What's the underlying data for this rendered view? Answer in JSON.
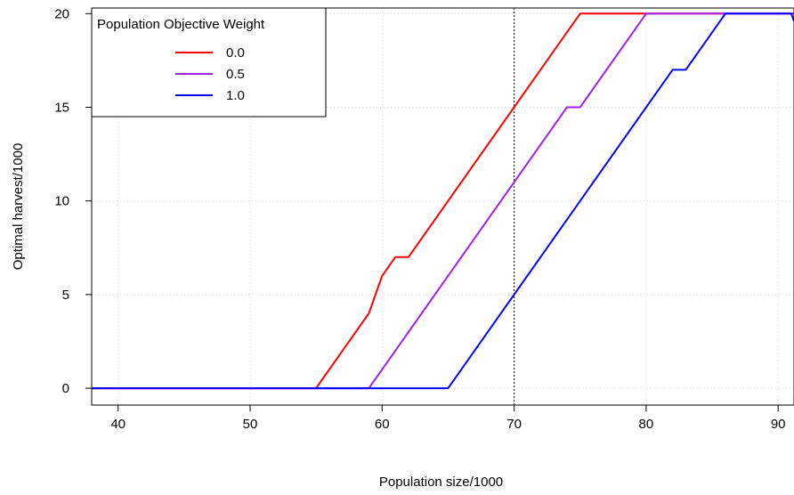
{
  "chart_data": {
    "type": "line",
    "xlabel": "Population size/1000",
    "ylabel": "Optimal harvest/1000",
    "xlim": [
      38,
      91.2
    ],
    "ylim": [
      -0.9,
      20.3
    ],
    "x_ticks": [
      40,
      50,
      60,
      70,
      80,
      90
    ],
    "y_ticks": [
      0,
      5,
      10,
      15,
      20
    ],
    "grid": true,
    "reference_vline": 70,
    "legend": {
      "title": "Population Objective Weight",
      "placement": "top-left"
    },
    "series": [
      {
        "name": "0.0",
        "color": "#ff0000",
        "points": [
          [
            38,
            0
          ],
          [
            55,
            0
          ],
          [
            59,
            4
          ],
          [
            60,
            6
          ],
          [
            61,
            7
          ],
          [
            62,
            7
          ],
          [
            75,
            20
          ],
          [
            91.2,
            20
          ]
        ]
      },
      {
        "name": "0.5",
        "color": "#a020f0",
        "points": [
          [
            38,
            0
          ],
          [
            59,
            0
          ],
          [
            74,
            15
          ],
          [
            75,
            15
          ],
          [
            80,
            20
          ],
          [
            91.2,
            20
          ]
        ]
      },
      {
        "name": "1.0",
        "color": "#0000ff",
        "points": [
          [
            38,
            0
          ],
          [
            65,
            0
          ],
          [
            82,
            17
          ],
          [
            83,
            17
          ],
          [
            86,
            20
          ],
          [
            91,
            20
          ],
          [
            91.2,
            19.6
          ]
        ]
      }
    ]
  }
}
